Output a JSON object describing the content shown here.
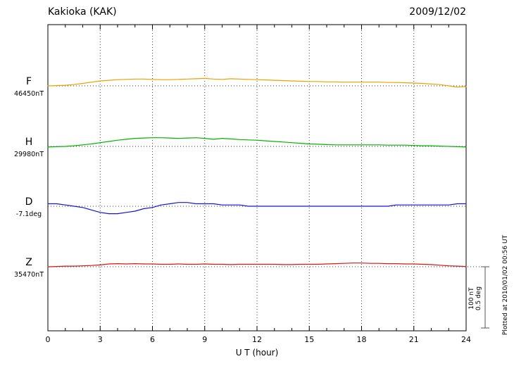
{
  "header": {
    "station": "Kakioka (KAK)",
    "date": "2009/12/02"
  },
  "xaxis": {
    "label": "U T (hour)",
    "ticks": [
      0,
      3,
      6,
      9,
      12,
      15,
      18,
      21,
      24
    ]
  },
  "scalebar": {
    "nt_label": "100 nT",
    "deg_label": "0.5 deg",
    "plotted_label": "Plotted at 2010/01/02 00:56 UT"
  },
  "channels": [
    {
      "label": "F",
      "value_label": "46450nT"
    },
    {
      "label": "H",
      "value_label": "29980nT"
    },
    {
      "label": "D",
      "value_label": "-7.1deg"
    },
    {
      "label": "Z",
      "value_label": "35470nT"
    }
  ],
  "chart_data": {
    "type": "line",
    "title": "Kakioka (KAK) magnetogram",
    "date": "2009/12/02",
    "xlabel": "U T (hour)",
    "x_range": [
      0,
      24
    ],
    "x_step_hours": 0.5,
    "x_ticks": [
      0,
      3,
      6,
      9,
      12,
      15,
      18,
      21,
      24
    ],
    "scale_divisions": {
      "nT": 100,
      "deg": 0.5
    },
    "grid": "dotted vertical every 3 h, dotted horizontal baseline per channel",
    "series": [
      {
        "name": "F",
        "unit": "nT",
        "baseline": 46450,
        "color": "#f0a000",
        "offsets": [
          0,
          0.5,
          1,
          2,
          4,
          6,
          8,
          9,
          10,
          10.5,
          11,
          11,
          10.5,
          10,
          10,
          10.5,
          11,
          11.5,
          12,
          11,
          10.5,
          11.5,
          11,
          10.5,
          10,
          9.5,
          9,
          8.5,
          8,
          7.5,
          7,
          7,
          6.5,
          6.5,
          6,
          6,
          6,
          6,
          6,
          5.5,
          5.5,
          5,
          4.5,
          4,
          3,
          2,
          0,
          -2,
          -1
        ]
      },
      {
        "name": "H",
        "unit": "nT",
        "baseline": 29980,
        "color": "#00b400",
        "offsets": [
          -1,
          -0.5,
          0,
          1,
          2.5,
          4,
          6,
          8,
          10,
          11.5,
          13,
          13.5,
          14,
          14,
          13.5,
          13,
          13.5,
          14,
          13,
          11.5,
          13,
          12,
          11,
          10.5,
          10,
          9,
          8,
          7,
          6,
          5,
          4,
          3.5,
          3,
          2.5,
          2.5,
          2.5,
          2.5,
          2.5,
          2.5,
          2,
          2,
          2,
          1.5,
          1,
          1,
          0.5,
          0,
          -0.5,
          -1
        ]
      },
      {
        "name": "D",
        "unit": "deg",
        "baseline": -7.1,
        "color": "#1414dc",
        "offsets": [
          0.02,
          0.02,
          0.01,
          0,
          -0.01,
          -0.03,
          -0.05,
          -0.06,
          -0.06,
          -0.05,
          -0.04,
          -0.02,
          -0.01,
          0.01,
          0.02,
          0.03,
          0.03,
          0.02,
          0.02,
          0.02,
          0.01,
          0.01,
          0.01,
          0,
          0,
          0,
          0,
          0,
          0,
          0,
          0,
          0,
          0,
          0,
          0,
          0,
          0,
          0,
          0,
          0,
          0.01,
          0.01,
          0.01,
          0.01,
          0.01,
          0.01,
          0.01,
          0.02,
          0.02
        ]
      },
      {
        "name": "Z",
        "unit": "nT",
        "baseline": 35470,
        "color": "#dc1414",
        "offsets": [
          0,
          0.5,
          1,
          1,
          1.5,
          2,
          3,
          4.5,
          5,
          4.5,
          5,
          4.5,
          4.5,
          4,
          4,
          4.5,
          4,
          4,
          4.5,
          4,
          4,
          3.5,
          4,
          4,
          4,
          4,
          4,
          3.5,
          3.5,
          4,
          4,
          4,
          4.5,
          5,
          5.5,
          6,
          6,
          5.5,
          5.5,
          5,
          5,
          4.5,
          4.5,
          4,
          3.5,
          2.5,
          1.5,
          1,
          0.5
        ]
      }
    ]
  }
}
